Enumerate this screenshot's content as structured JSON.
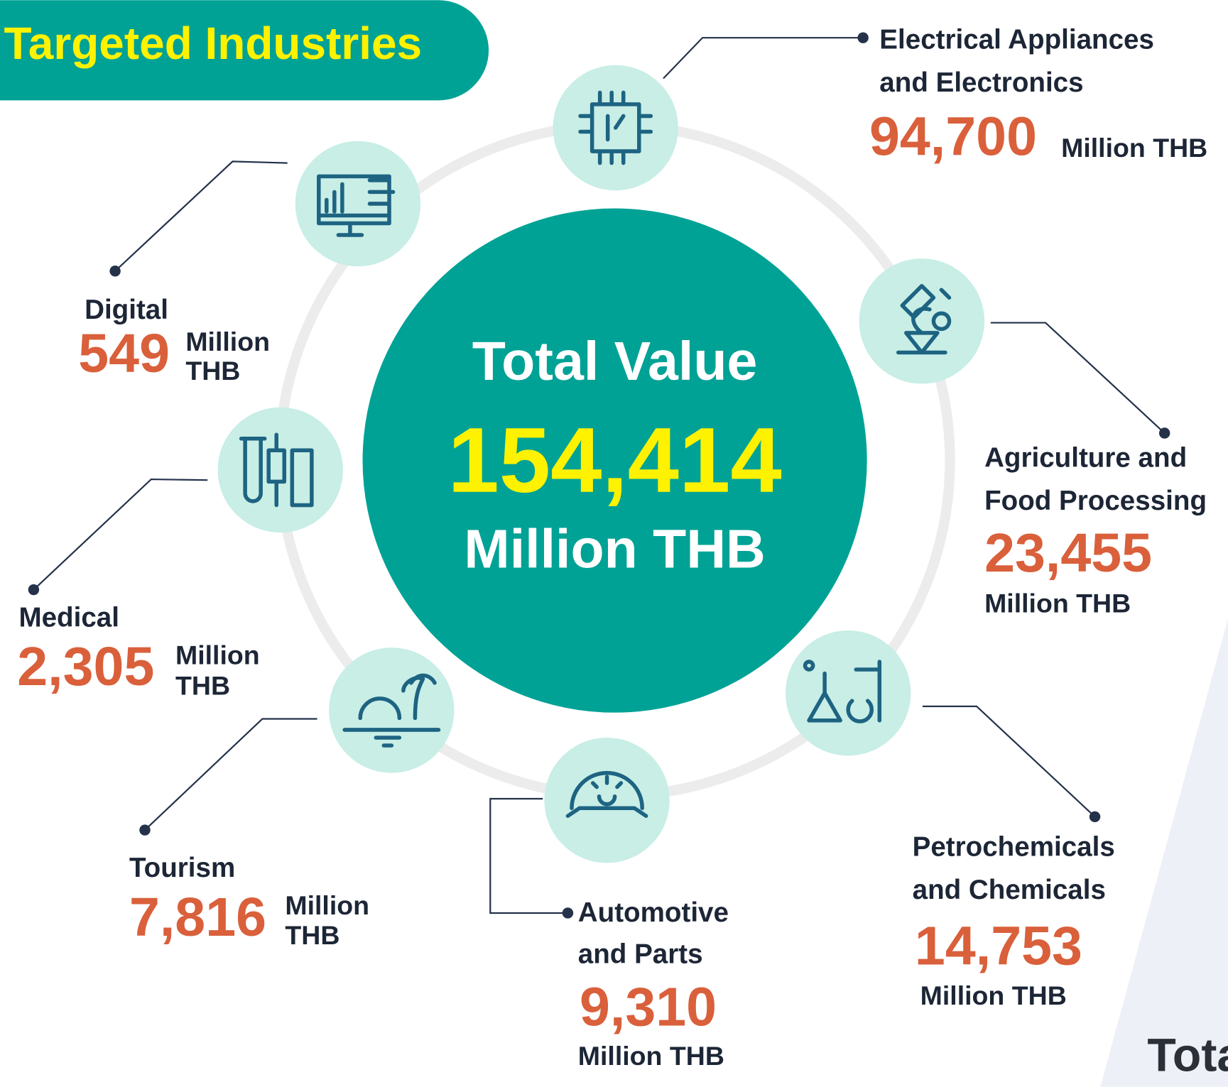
{
  "header": {
    "title": "Targeted Industries"
  },
  "center": {
    "label": "Total Value",
    "value": "154,414",
    "unit": "Million THB"
  },
  "industries": [
    {
      "name": [
        "Electrical Appliances",
        "and Electronics"
      ],
      "value": "94,700",
      "unit": [
        "Million THB"
      ]
    },
    {
      "name": [
        "Digital"
      ],
      "value": "549",
      "unit": [
        "Million",
        "THB"
      ]
    },
    {
      "name": [
        "Agriculture and",
        "Food Processing"
      ],
      "value": "23,455",
      "unit": [
        "Million THB"
      ]
    },
    {
      "name": [
        "Medical"
      ],
      "value": "2,305",
      "unit": [
        "Million",
        "THB"
      ]
    },
    {
      "name": [
        "Petrochemicals",
        "and Chemicals"
      ],
      "value": "14,753",
      "unit": [
        "Million THB"
      ]
    },
    {
      "name": [
        "Tourism"
      ],
      "value": "7,816",
      "unit": [
        "Million",
        "THB"
      ]
    },
    {
      "name": [
        "Automotive",
        "and Parts"
      ],
      "value": "9,310",
      "unit": [
        "Million THB"
      ]
    }
  ],
  "footer": {
    "text": "Tota"
  }
}
